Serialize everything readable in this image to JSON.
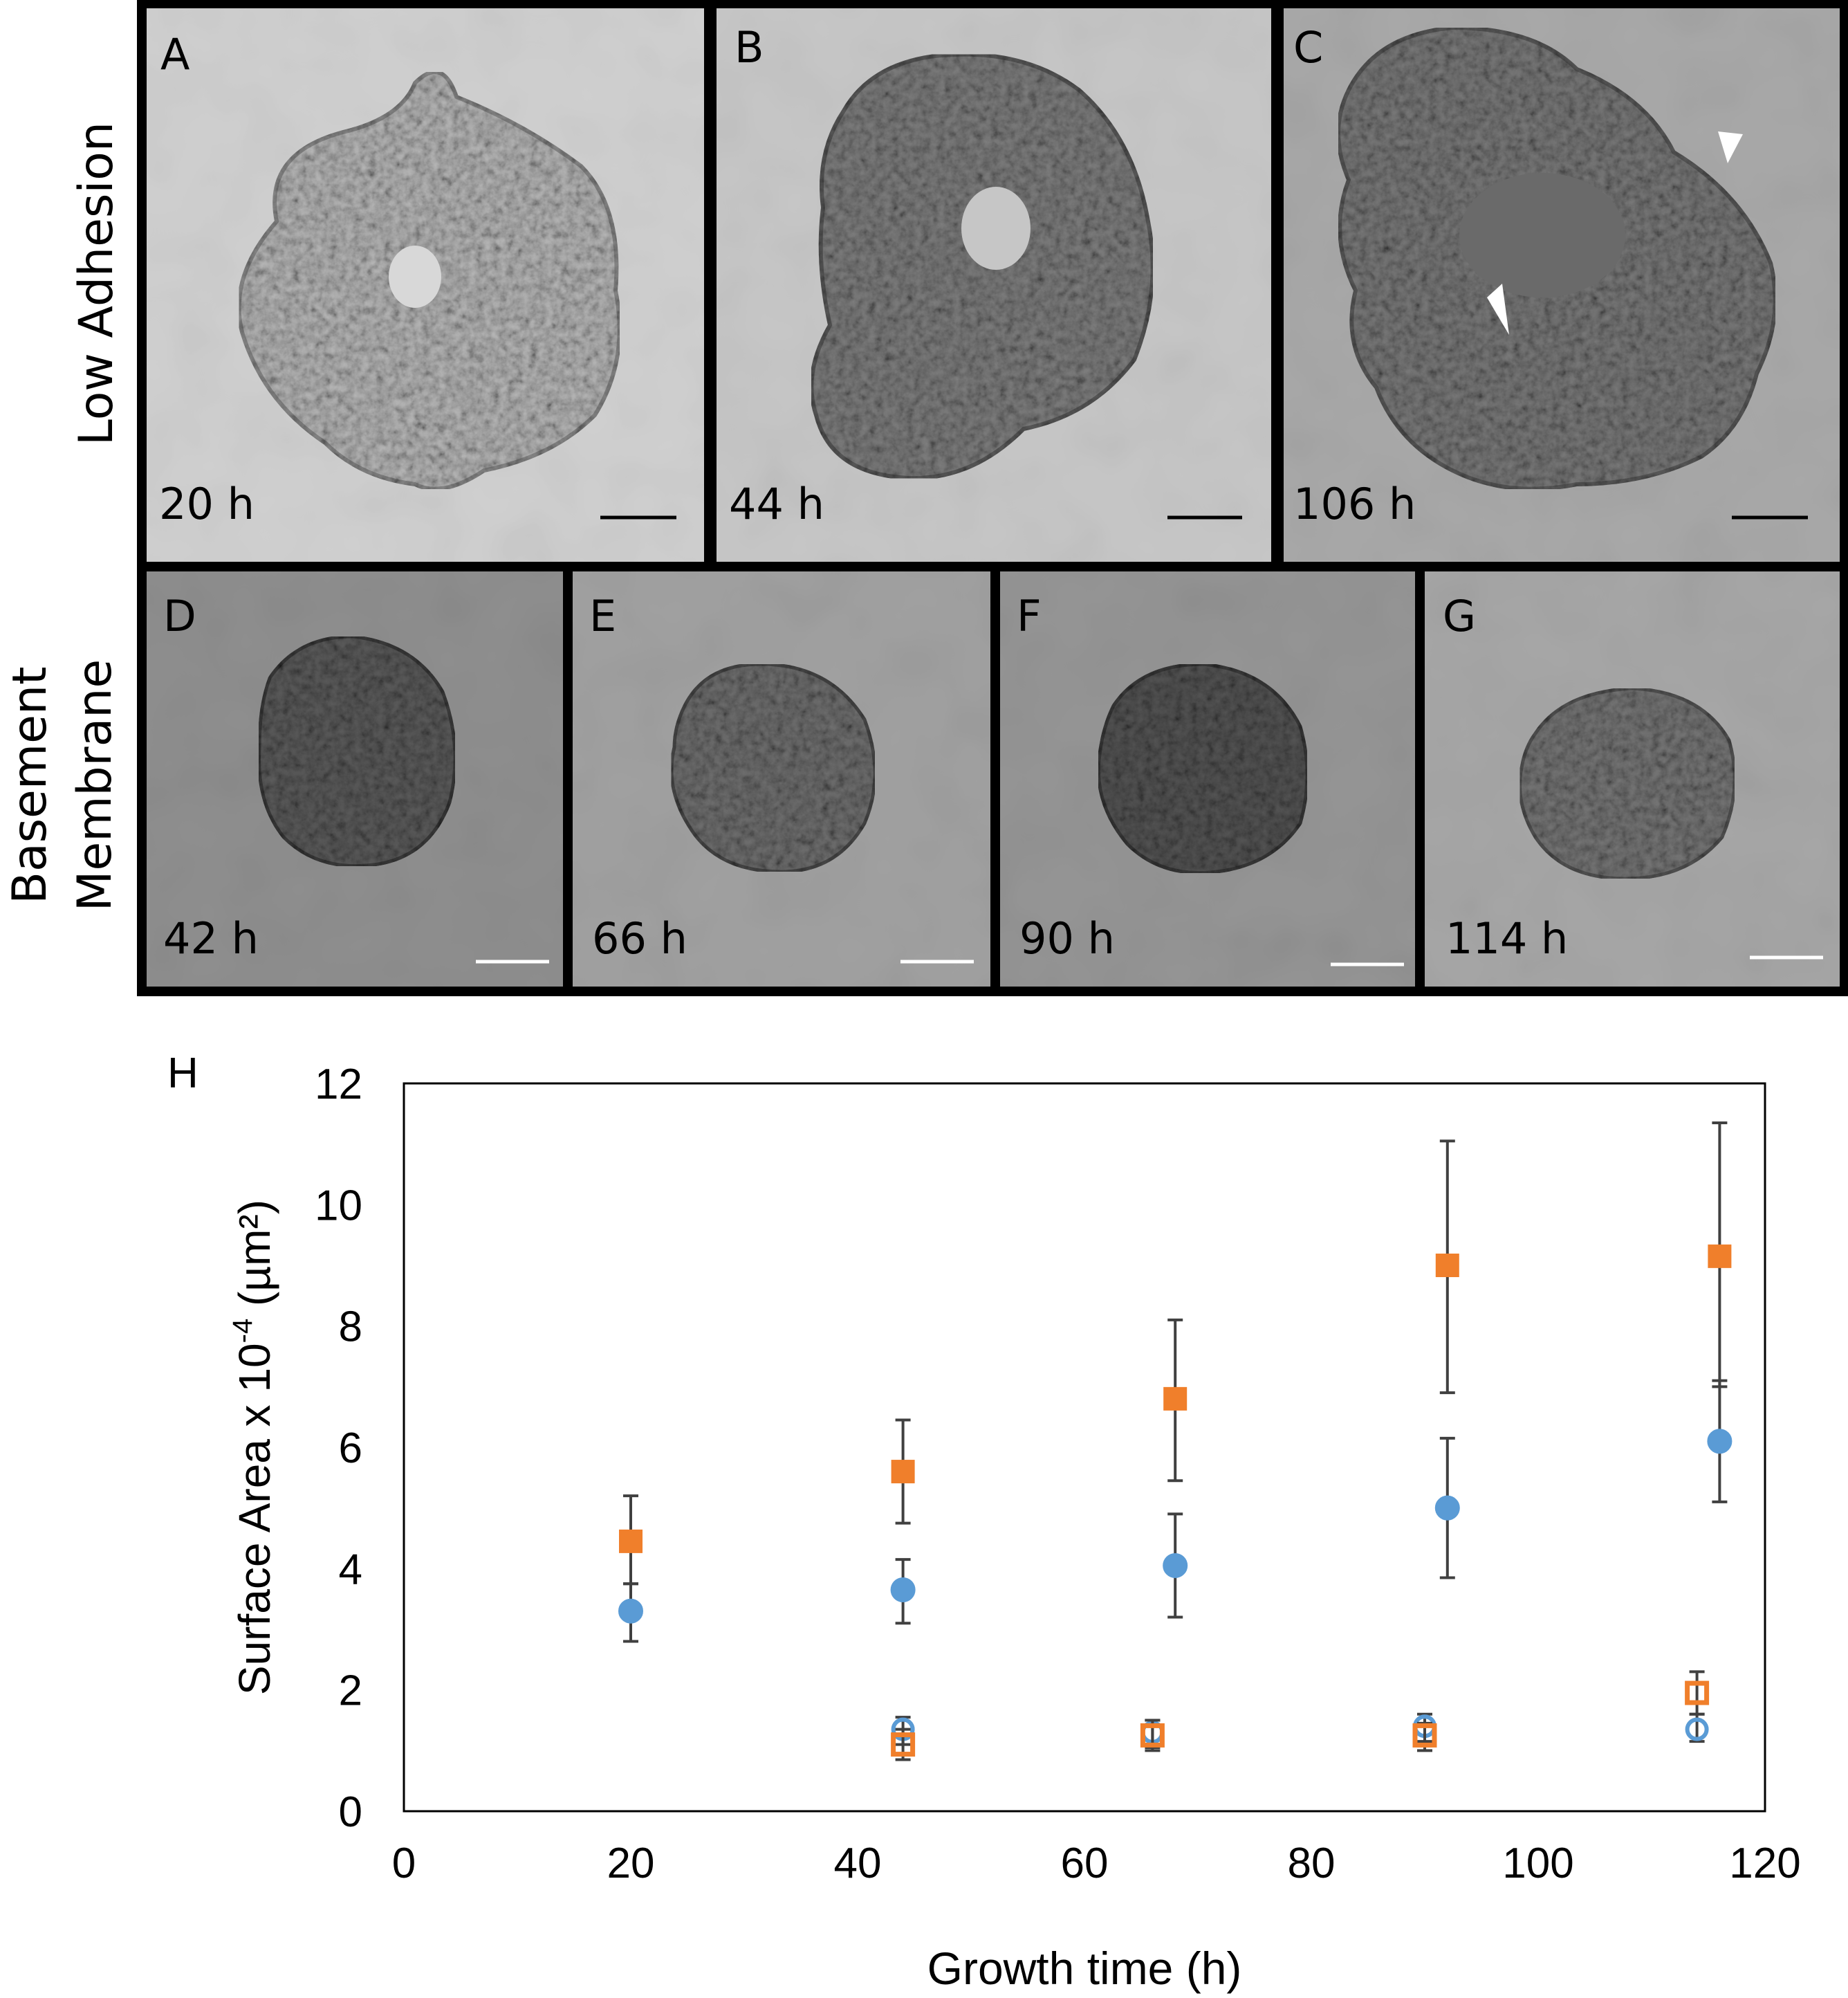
{
  "figure": {
    "row_labels": {
      "low_adhesion": "Low Adhesion",
      "basement_line1": "Basement",
      "basement_line2": "Membrane"
    },
    "panels": [
      {
        "letter": "A",
        "time": "20 h"
      },
      {
        "letter": "B",
        "time": "44 h"
      },
      {
        "letter": "C",
        "time": "106 h"
      },
      {
        "letter": "D",
        "time": "42 h"
      },
      {
        "letter": "E",
        "time": "66 h"
      },
      {
        "letter": "F",
        "time": "90 h"
      },
      {
        "letter": "G",
        "time": "114 h"
      }
    ],
    "chart_panel_letter": "H"
  },
  "colors": {
    "orange": "#F07F2B",
    "blue": "#5A9BD5",
    "error_bar": "#404040",
    "micro_bg_light": "#c9c9c9",
    "micro_bg_dark": "#8e8e8e"
  },
  "chart_data": {
    "type": "scatter",
    "title": "",
    "xlabel": "Growth time (h)",
    "ylabel_main": "Surface Area x 10",
    "ylabel_exp": "-4",
    "ylabel_unit": " (µm²)",
    "xlim": [
      0,
      120
    ],
    "ylim": [
      0,
      12
    ],
    "xticks": [
      0,
      20,
      40,
      60,
      80,
      100,
      120
    ],
    "yticks": [
      0,
      2,
      4,
      6,
      8,
      10,
      12
    ],
    "grid": false,
    "series": [
      {
        "name": "orange-filled-square",
        "marker": "square",
        "filled": true,
        "color": "#F07F2B",
        "points": [
          {
            "x": 20,
            "y": 4.45,
            "lo": 3.75,
            "hi": 5.2
          },
          {
            "x": 44,
            "y": 5.6,
            "lo": 4.75,
            "hi": 6.45
          },
          {
            "x": 68,
            "y": 6.8,
            "lo": 5.45,
            "hi": 8.1
          },
          {
            "x": 92,
            "y": 9.0,
            "lo": 6.9,
            "hi": 11.05
          },
          {
            "x": 116,
            "y": 9.15,
            "lo": 7.0,
            "hi": 11.35
          }
        ]
      },
      {
        "name": "blue-filled-circle",
        "marker": "circle",
        "filled": true,
        "color": "#5A9BD5",
        "points": [
          {
            "x": 20,
            "y": 3.3,
            "lo": 2.8,
            "hi": 3.75
          },
          {
            "x": 44,
            "y": 3.65,
            "lo": 3.1,
            "hi": 4.15
          },
          {
            "x": 68,
            "y": 4.05,
            "lo": 3.2,
            "hi": 4.9
          },
          {
            "x": 92,
            "y": 5.0,
            "lo": 3.85,
            "hi": 6.15
          },
          {
            "x": 116,
            "y": 6.1,
            "lo": 5.1,
            "hi": 7.1
          }
        ]
      },
      {
        "name": "blue-open-circle",
        "marker": "circle",
        "filled": false,
        "color": "#5A9BD5",
        "points": [
          {
            "x": 44,
            "y": 1.35,
            "lo": 1.1,
            "hi": 1.55
          },
          {
            "x": 66,
            "y": 1.3,
            "lo": 1.05,
            "hi": 1.5
          },
          {
            "x": 90,
            "y": 1.4,
            "lo": 1.15,
            "hi": 1.6
          },
          {
            "x": 114,
            "y": 1.35,
            "lo": 1.15,
            "hi": 1.6
          }
        ]
      },
      {
        "name": "orange-open-square",
        "marker": "square",
        "filled": false,
        "color": "#F07F2B",
        "points": [
          {
            "x": 44,
            "y": 1.1,
            "lo": 0.85,
            "hi": 1.35
          },
          {
            "x": 66,
            "y": 1.25,
            "lo": 1.0,
            "hi": 1.5
          },
          {
            "x": 90,
            "y": 1.25,
            "lo": 1.0,
            "hi": 1.45
          },
          {
            "x": 114,
            "y": 1.95,
            "lo": 1.6,
            "hi": 2.3
          }
        ]
      }
    ]
  }
}
